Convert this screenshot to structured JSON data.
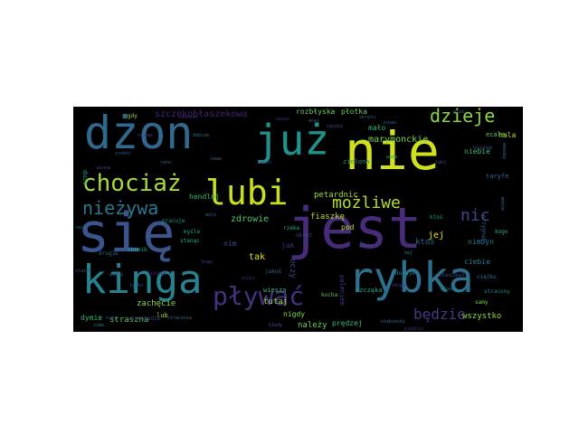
{
  "wordcloud": {
    "words": [
      {
        "text": "nie",
        "color": "#d0e11c"
      },
      {
        "text": "się",
        "color": "#3a548c"
      },
      {
        "text": "jest",
        "color": "#472c7a"
      },
      {
        "text": "dżon",
        "color": "#31688e"
      },
      {
        "text": "już",
        "color": "#20928c"
      },
      {
        "text": "kinga",
        "color": "#26828e"
      },
      {
        "text": "rybka",
        "color": "#2d708e"
      },
      {
        "text": "lubi",
        "color": "#c8e020"
      },
      {
        "text": "chociaż",
        "color": "#a8db34"
      },
      {
        "text": "pływać",
        "color": "#46327e"
      },
      {
        "text": "dzieje",
        "color": "#8bd646"
      },
      {
        "text": "nieżywa",
        "color": "#2a788e"
      },
      {
        "text": "możliwe",
        "color": "#b5de2b"
      },
      {
        "text": "nic",
        "color": "#404688"
      },
      {
        "text": "będzie",
        "color": "#443a83"
      },
      {
        "text": "marymonckie",
        "color": "#7ad151"
      },
      {
        "text": "szczękobłaszekowa",
        "color": "#482475"
      },
      {
        "text": "zdrowie",
        "color": "#52c569"
      },
      {
        "text": "petardnic",
        "color": "#a0da39"
      },
      {
        "text": "fiaszkę",
        "color": "#b4de2c"
      },
      {
        "text": "rozbłyska",
        "color": "#6ccd5a"
      },
      {
        "text": "płotka",
        "color": "#6ccd5a"
      },
      {
        "text": "hala",
        "color": "#b5de2b"
      },
      {
        "text": "ecale",
        "color": "#5ec962"
      },
      {
        "text": "mało",
        "color": "#35b779"
      },
      {
        "text": "niebie",
        "color": "#3dbc74"
      },
      {
        "text": "tutaj",
        "color": "#90d743"
      },
      {
        "text": "nigdy",
        "color": "#86d549"
      },
      {
        "text": "należy",
        "color": "#6ece58"
      },
      {
        "text": "prędzej",
        "color": "#35b779"
      },
      {
        "text": "zachęcie",
        "color": "#8bd646"
      },
      {
        "text": "straszna",
        "color": "#5ec962"
      },
      {
        "text": "dymie",
        "color": "#3dbc74"
      },
      {
        "text": "wszystko",
        "color": "#95d840"
      },
      {
        "text": "tak",
        "color": "#dde318"
      },
      {
        "text": "jej",
        "color": "#e5e419"
      },
      {
        "text": "oczy",
        "color": "#3e4989"
      },
      {
        "text": "ktoś",
        "color": "#355f8d"
      },
      {
        "text": "ciebie",
        "color": "#287c8e"
      },
      {
        "text": "nimbyn",
        "color": "#2a788e"
      },
      {
        "text": "jak",
        "color": "#472d7b"
      },
      {
        "text": "nim",
        "color": "#3b518b"
      },
      {
        "text": "rozdzaków",
        "color": "#34618d"
      },
      {
        "text": "dużo",
        "color": "#1f988b"
      },
      {
        "text": "pod",
        "color": "#b8de29"
      },
      {
        "text": "hendluj",
        "color": "#35b779"
      },
      {
        "text": "wiesza",
        "color": "#3bbb75"
      },
      {
        "text": "szczęka",
        "color": "#22a884"
      },
      {
        "text": "lub",
        "color": "#a2da37"
      },
      {
        "text": "zielona",
        "color": "#21918c"
      },
      {
        "text": "taryfe",
        "color": "#2f6c8e"
      },
      {
        "text": "paleniem",
        "color": "#453781"
      },
      {
        "text": "myśle",
        "color": "#20a486"
      },
      {
        "text": "stanąc",
        "color": "#25ab82"
      },
      {
        "text": "pracuje",
        "color": "#1f9e89"
      },
      {
        "text": "rzeka",
        "color": "#29af7f"
      },
      {
        "text": "okręt",
        "color": "#3f4788"
      },
      {
        "text": "drugie",
        "color": "#31688e"
      },
      {
        "text": "jakoś",
        "color": "#34618d"
      },
      {
        "text": "kocha",
        "color": "#5cc863"
      },
      {
        "text": "innego",
        "color": "#482878"
      },
      {
        "text": "przygnał",
        "color": "#31688e"
      },
      {
        "text": "ciężko",
        "color": "#2c728e"
      },
      {
        "text": "stracony",
        "color": "#26828e"
      },
      {
        "text": "mieszkał",
        "color": "#3e4a89"
      },
      {
        "text": "chemik",
        "color": "#22a884"
      },
      {
        "text": "dodaje",
        "color": "#27808e"
      },
      {
        "text": "samy",
        "color": "#7fd34e"
      },
      {
        "text": "kogo",
        "color": "#2ab07f"
      },
      {
        "text": "gdy",
        "color": "#a2da37"
      },
      {
        "text": "ktoś",
        "color": "#1fa188"
      },
      {
        "text": "kiedy",
        "color": "#3a538b"
      },
      {
        "text": "zima",
        "color": "#2a788e"
      },
      {
        "text": "koty",
        "color": "#404588"
      },
      {
        "text": "spromadze",
        "color": "#453882"
      },
      {
        "text": "strasznie",
        "color": "#2c728e"
      },
      {
        "text": "niebieski",
        "color": "#2e6f8e"
      },
      {
        "text": "okrętu",
        "color": "#365d8d"
      },
      {
        "text": "zgodzę",
        "color": "#433d84"
      },
      {
        "text": "bruchem",
        "color": "#3f4889"
      },
      {
        "text": "masowy",
        "color": "#2d708e"
      },
      {
        "text": "miał",
        "color": "#355e8d"
      },
      {
        "text": "umowy",
        "color": "#472a7a"
      },
      {
        "text": "mówi",
        "color": "#3b528b"
      },
      {
        "text": "rozkaz",
        "color": "#414487"
      },
      {
        "text": "zrobić",
        "color": "#38598c"
      },
      {
        "text": "winna",
        "color": "#3f4788"
      },
      {
        "text": "koniec",
        "color": "#46307e"
      },
      {
        "text": "dobrze",
        "color": "#2b758e"
      },
      {
        "text": "nowe",
        "color": "#306a8e"
      },
      {
        "text": "sobie",
        "color": "#3e4c8a"
      },
      {
        "text": "woda",
        "color": "#1e9b8a"
      },
      {
        "text": "taki",
        "color": "#3d4d8a"
      },
      {
        "text": "wiosna",
        "color": "#23888e"
      },
      {
        "text": "widzi",
        "color": "#482576"
      },
      {
        "text": "puchy",
        "color": "#33638d"
      },
      {
        "text": "ręce",
        "color": "#2f6b8e"
      },
      {
        "text": "statek",
        "color": "#404688"
      },
      {
        "text": "mokre",
        "color": "#2b748e"
      },
      {
        "text": "rano",
        "color": "#32658e"
      },
      {
        "text": "kogo",
        "color": "#424086"
      },
      {
        "text": "tylko",
        "color": "#3b528b"
      },
      {
        "text": "długo",
        "color": "#453781"
      },
      {
        "text": "woli",
        "color": "#2e6e8e"
      },
      {
        "text": "hej",
        "color": "#25838e"
      },
      {
        "text": "gdzie",
        "color": "#3c4f8a"
      },
      {
        "text": "znowu",
        "color": "#33638d"
      },
      {
        "text": "pięknie",
        "color": "#472f7d"
      }
    ]
  }
}
